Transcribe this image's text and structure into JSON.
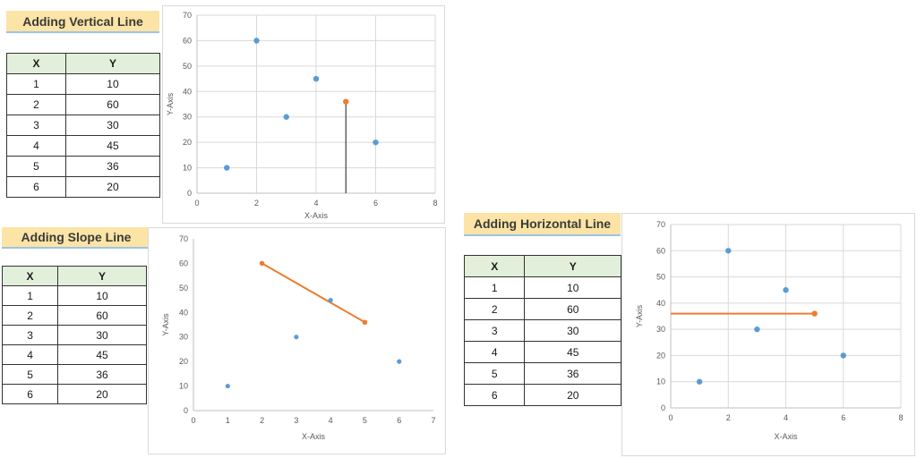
{
  "panels": [
    {
      "title": "Adding Vertical Line",
      "table": {
        "headers": [
          "X",
          "Y"
        ],
        "rows": [
          [
            "1",
            "10"
          ],
          [
            "2",
            "60"
          ],
          [
            "3",
            "30"
          ],
          [
            "4",
            "45"
          ],
          [
            "5",
            "36"
          ],
          [
            "6",
            "20"
          ]
        ]
      }
    },
    {
      "title": "Adding Slope Line",
      "table": {
        "headers": [
          "X",
          "Y"
        ],
        "rows": [
          [
            "1",
            "10"
          ],
          [
            "2",
            "60"
          ],
          [
            "3",
            "30"
          ],
          [
            "4",
            "45"
          ],
          [
            "5",
            "36"
          ],
          [
            "6",
            "20"
          ]
        ]
      }
    },
    {
      "title": "Adding Horizontal Line",
      "table": {
        "headers": [
          "X",
          "Y"
        ],
        "rows": [
          [
            "1",
            "10"
          ],
          [
            "2",
            "60"
          ],
          [
            "3",
            "30"
          ],
          [
            "4",
            "45"
          ],
          [
            "5",
            "36"
          ],
          [
            "6",
            "20"
          ]
        ]
      }
    }
  ],
  "chart_data": [
    {
      "type": "scatter",
      "xlabel": "X-Axis",
      "ylabel": "Y-Axis",
      "xlim": [
        0,
        8
      ],
      "xticks": [
        0,
        2,
        4,
        6,
        8
      ],
      "ylim": [
        0,
        70
      ],
      "yticks": [
        0,
        10,
        20,
        30,
        40,
        50,
        60,
        70
      ],
      "grid": true,
      "series": [
        {
          "x": [
            1,
            2,
            3,
            4,
            6
          ],
          "y": [
            10,
            60,
            30,
            45,
            20
          ],
          "color": "#5b9bd5"
        },
        {
          "x": [
            5
          ],
          "y": [
            36
          ],
          "color": "#ed7d31"
        }
      ],
      "line": {
        "kind": "vertical",
        "x": 5,
        "y": [
          0,
          36
        ],
        "color": "#404040"
      }
    },
    {
      "type": "scatter",
      "xlabel": "X-Axis",
      "ylabel": "Y-Axis",
      "xlim": [
        0,
        7
      ],
      "xticks": [
        0,
        1,
        2,
        3,
        4,
        5,
        6,
        7
      ],
      "ylim": [
        0,
        70
      ],
      "yticks": [
        0,
        10,
        20,
        30,
        40,
        50,
        60,
        70
      ],
      "grid": false,
      "series": [
        {
          "x": [
            1,
            3,
            4,
            6
          ],
          "y": [
            10,
            30,
            45,
            20
          ],
          "color": "#5b9bd5"
        },
        {
          "x": [
            2,
            5
          ],
          "y": [
            60,
            36
          ],
          "color": "#ed7d31"
        }
      ],
      "line": {
        "kind": "slope",
        "x": [
          2,
          5
        ],
        "y": [
          60,
          36
        ],
        "color": "#ed7d31"
      }
    },
    {
      "type": "scatter",
      "xlabel": "X-Axis",
      "ylabel": "Y-Axis",
      "xlim": [
        0,
        8
      ],
      "xticks": [
        0,
        2,
        4,
        6,
        8
      ],
      "ylim": [
        0,
        70
      ],
      "yticks": [
        0,
        10,
        20,
        30,
        40,
        50,
        60,
        70
      ],
      "grid": true,
      "series": [
        {
          "x": [
            1,
            2,
            3,
            4,
            6
          ],
          "y": [
            10,
            60,
            30,
            45,
            20
          ],
          "color": "#5b9bd5"
        },
        {
          "x": [
            5
          ],
          "y": [
            36
          ],
          "color": "#ed7d31"
        }
      ],
      "line": {
        "kind": "horizontal",
        "x": [
          0,
          5
        ],
        "y": 36,
        "color": "#ed7d31"
      }
    }
  ]
}
